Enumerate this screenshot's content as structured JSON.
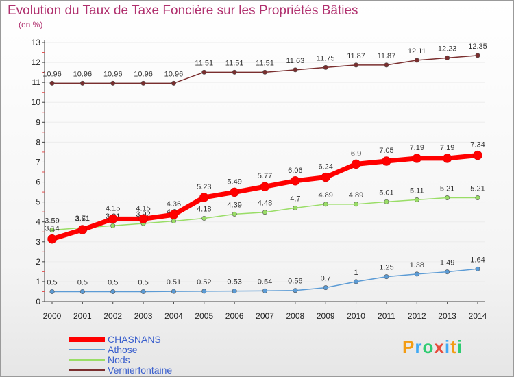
{
  "chart_data": {
    "type": "line",
    "title": "Evolution du Taux de Taxe Foncière sur les Propriétés Bâties",
    "ylabel": "(en %)",
    "xlabel": "",
    "ylim": [
      0,
      13
    ],
    "y_ticks": [
      0,
      1,
      2,
      3,
      4,
      5,
      6,
      7,
      8,
      9,
      10,
      11,
      12,
      13
    ],
    "categories": [
      "2000",
      "2001",
      "2002",
      "2003",
      "2004",
      "2005",
      "2006",
      "2007",
      "2008",
      "2009",
      "2010",
      "2011",
      "2012",
      "2013",
      "2014"
    ],
    "series": [
      {
        "name": "CHASNANS",
        "color": "#ff0000",
        "values": [
          3.14,
          3.61,
          4.15,
          4.15,
          4.36,
          5.23,
          5.49,
          5.77,
          6.06,
          6.24,
          6.9,
          7.05,
          7.19,
          7.19,
          7.34
        ],
        "labels": [
          "3.14",
          "3.61",
          "4.15",
          "4.15",
          "4.36",
          "5.23",
          "5.49",
          "5.77",
          "6.06",
          "6.24",
          "6.9",
          "7.05",
          "7.19",
          "7.19",
          "7.34"
        ]
      },
      {
        "name": "Athose",
        "color": "#5b9bd5",
        "values": [
          0.5,
          0.5,
          0.5,
          0.5,
          0.51,
          0.52,
          0.53,
          0.54,
          0.56,
          0.7,
          1,
          1.25,
          1.38,
          1.49,
          1.64
        ],
        "labels": [
          "0.5",
          "0.5",
          "0.5",
          "0.5",
          "0.51",
          "0.52",
          "0.53",
          "0.54",
          "0.56",
          "0.7",
          "1",
          "1.25",
          "1.38",
          "1.49",
          "1.64"
        ]
      },
      {
        "name": "Nods",
        "color": "#99dd66",
        "values": [
          3.59,
          3.71,
          3.81,
          3.92,
          4.04,
          4.18,
          4.39,
          4.48,
          4.7,
          4.89,
          4.89,
          5.01,
          5.11,
          5.21,
          5.21
        ],
        "labels": [
          "3.59",
          "3.71",
          "3.81",
          "3.92",
          "4.04",
          "4.18",
          "4.39",
          "4.48",
          "4.7",
          "4.89",
          "4.89",
          "5.01",
          "5.11",
          "5.21",
          "5.21"
        ]
      },
      {
        "name": "Vernierfontaine",
        "color": "#7a2e2e",
        "values": [
          10.96,
          10.96,
          10.96,
          10.96,
          10.96,
          11.51,
          11.51,
          11.51,
          11.63,
          11.75,
          11.87,
          11.87,
          12.11,
          12.23,
          12.35
        ],
        "labels": [
          "10.96",
          "10.96",
          "10.96",
          "10.96",
          "10.96",
          "11.51",
          "11.51",
          "11.51",
          "11.63",
          "11.75",
          "11.87",
          "11.87",
          "12.11",
          "12.23",
          "12.35"
        ]
      }
    ]
  },
  "logo": {
    "letters": [
      "P",
      "r",
      "o",
      "x",
      "i",
      "t",
      "i"
    ],
    "colors": [
      "#f39c12",
      "#3fa9f5",
      "#2ecc71",
      "#e74c3c",
      "#3fa9f5",
      "#f39c12",
      "#2ecc71"
    ]
  }
}
